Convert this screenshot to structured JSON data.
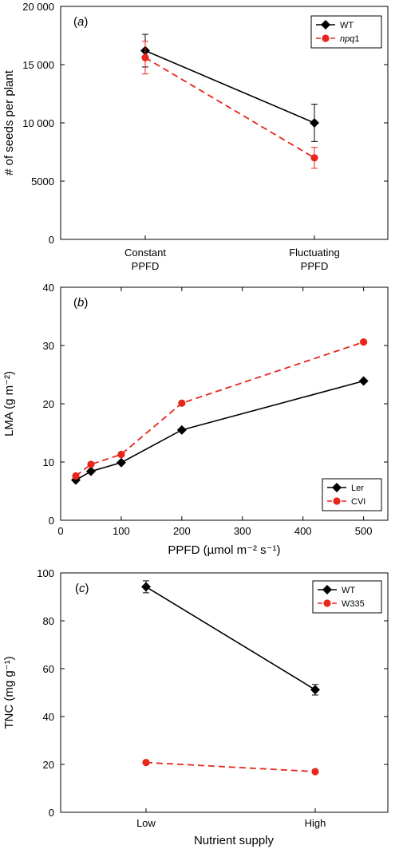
{
  "chart_data": [
    {
      "type": "line",
      "panel": "(a)",
      "panel_letter": "a",
      "categories": [
        "Constant PPFD",
        "Fluctuating PPFD"
      ],
      "category_lines": [
        [
          "Constant",
          "PPFD"
        ],
        [
          "Fluctuating",
          "PPFD"
        ]
      ],
      "series": [
        {
          "name": "WT",
          "values": [
            16200,
            10000
          ],
          "errors": [
            1400,
            1600
          ],
          "color": "#000000",
          "marker": "diamond",
          "dash": "solid"
        },
        {
          "name": "npq1",
          "name_parts": [
            "npq",
            "1"
          ],
          "values": [
            15600,
            7000
          ],
          "errors": [
            1400,
            900
          ],
          "color": "#e8261c",
          "marker": "circle",
          "dash": "dashed"
        }
      ],
      "ylabel": "# of seeds per plant",
      "xlabel": "",
      "ylim": [
        0,
        20000
      ],
      "yticks": [
        0,
        5000,
        10000,
        15000,
        20000
      ],
      "ytick_labels": [
        "0",
        "5000",
        "10 000",
        "15 000",
        "20 000"
      ],
      "legend_position": "top-right"
    },
    {
      "type": "line",
      "panel": "(b)",
      "panel_letter": "b",
      "x": [
        25,
        50,
        100,
        200,
        500
      ],
      "series": [
        {
          "name": "Ler",
          "values": [
            6.9,
            8.4,
            9.9,
            15.5,
            23.9
          ],
          "color": "#000000",
          "marker": "diamond",
          "dash": "solid"
        },
        {
          "name": "CVI",
          "values": [
            7.6,
            9.6,
            11.3,
            20.1,
            30.6
          ],
          "color": "#e8261c",
          "marker": "circle",
          "dash": "dashed"
        }
      ],
      "xlabel": "PPFD (µmol m⁻² s⁻¹)",
      "ylabel": "LMA (g m⁻²)",
      "xlim": [
        0,
        540
      ],
      "ylim": [
        0,
        40
      ],
      "xticks": [
        0,
        100,
        200,
        300,
        400,
        500
      ],
      "yticks": [
        0,
        10,
        20,
        30,
        40
      ],
      "legend_position": "bottom-right"
    },
    {
      "type": "line",
      "panel": "(c)",
      "panel_letter": "c",
      "categories": [
        "Low",
        "High"
      ],
      "category_lines": [
        [
          "Low"
        ],
        [
          "High"
        ]
      ],
      "series": [
        {
          "name": "WT",
          "values": [
            94.2,
            51.2
          ],
          "errors": [
            2.5,
            2.2
          ],
          "color": "#000000",
          "marker": "diamond",
          "dash": "solid"
        },
        {
          "name": "W335",
          "values": [
            20.8,
            17.0
          ],
          "errors": [
            0.5,
            0.5
          ],
          "color": "#e8261c",
          "marker": "circle",
          "dash": "dashed"
        }
      ],
      "xlabel": "Nutrient supply",
      "ylabel": "TNC (mg g⁻¹)",
      "ylim": [
        0,
        100
      ],
      "yticks": [
        0,
        20,
        40,
        60,
        80,
        100
      ],
      "legend_position": "top-right"
    }
  ]
}
